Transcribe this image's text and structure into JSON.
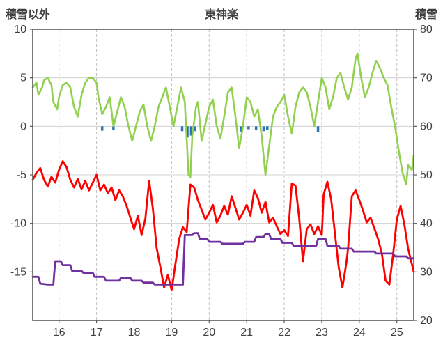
{
  "chart_data": {
    "type": "line",
    "title": "東神楽",
    "x_range": [
      15.3,
      25.45
    ],
    "x_ticks": [
      "16",
      "17",
      "18",
      "19",
      "20",
      "21",
      "22",
      "23",
      "24",
      "25"
    ],
    "x_tick_values": [
      16,
      17,
      18,
      19,
      20,
      21,
      22,
      23,
      24,
      25
    ],
    "left_axis": {
      "label": "積雪以外",
      "range": [
        -20,
        10
      ],
      "ticks": [
        10,
        5,
        0,
        -5,
        -10,
        -15
      ]
    },
    "right_axis": {
      "label": "積雪",
      "range": [
        20,
        80
      ],
      "ticks": [
        80,
        70,
        60,
        50,
        40,
        30,
        20
      ]
    },
    "grid": {
      "horizontal": "solid",
      "vertical": "dashed"
    },
    "legend": "none",
    "colors": {
      "green_line": "#92d050",
      "red_line": "#ff0000",
      "purple_line": "#7030a0",
      "blue_bars": "#2e75b6",
      "grid_h": "#d0d0d0",
      "grid_v": "#bfbfbf",
      "border": "#595959",
      "text": "#404040"
    },
    "series": [
      {
        "id": "green-line",
        "axis": "right",
        "color": "#92d050",
        "width": 2.6,
        "points": [
          [
            15.3,
            68
          ],
          [
            15.4,
            69
          ],
          [
            15.45,
            66.5
          ],
          [
            15.55,
            68
          ],
          [
            15.6,
            69.5
          ],
          [
            15.7,
            70
          ],
          [
            15.8,
            68.5
          ],
          [
            15.85,
            65
          ],
          [
            15.95,
            63.5
          ],
          [
            16.0,
            66
          ],
          [
            16.1,
            68.5
          ],
          [
            16.2,
            69
          ],
          [
            16.3,
            68
          ],
          [
            16.4,
            64
          ],
          [
            16.5,
            62
          ],
          [
            16.6,
            66.5
          ],
          [
            16.7,
            69
          ],
          [
            16.8,
            70
          ],
          [
            16.9,
            70
          ],
          [
            17.0,
            69
          ],
          [
            17.05,
            66
          ],
          [
            17.15,
            62.5
          ],
          [
            17.25,
            64
          ],
          [
            17.35,
            66
          ],
          [
            17.45,
            60
          ],
          [
            17.55,
            63
          ],
          [
            17.65,
            66
          ],
          [
            17.75,
            64
          ],
          [
            17.85,
            60
          ],
          [
            17.95,
            57
          ],
          [
            18.05,
            60
          ],
          [
            18.15,
            63
          ],
          [
            18.25,
            64.5
          ],
          [
            18.35,
            60
          ],
          [
            18.45,
            57
          ],
          [
            18.55,
            60
          ],
          [
            18.65,
            64
          ],
          [
            18.75,
            66
          ],
          [
            18.85,
            68
          ],
          [
            18.95,
            64
          ],
          [
            19.05,
            60
          ],
          [
            19.15,
            64
          ],
          [
            19.25,
            68
          ],
          [
            19.35,
            65
          ],
          [
            19.45,
            50
          ],
          [
            19.5,
            49.5
          ],
          [
            19.55,
            58
          ],
          [
            19.65,
            64
          ],
          [
            19.7,
            65
          ],
          [
            19.8,
            57
          ],
          [
            19.9,
            60.5
          ],
          [
            20.0,
            64
          ],
          [
            20.1,
            65.5
          ],
          [
            20.2,
            60
          ],
          [
            20.3,
            57.5
          ],
          [
            20.4,
            62
          ],
          [
            20.5,
            67
          ],
          [
            20.6,
            68
          ],
          [
            20.7,
            62
          ],
          [
            20.8,
            55.5
          ],
          [
            20.9,
            60
          ],
          [
            21.0,
            66
          ],
          [
            21.1,
            65
          ],
          [
            21.2,
            62
          ],
          [
            21.3,
            63.5
          ],
          [
            21.4,
            58
          ],
          [
            21.5,
            50
          ],
          [
            21.6,
            56
          ],
          [
            21.7,
            62
          ],
          [
            21.8,
            64
          ],
          [
            21.9,
            65
          ],
          [
            22.0,
            66.5
          ],
          [
            22.1,
            62
          ],
          [
            22.2,
            58.5
          ],
          [
            22.3,
            64
          ],
          [
            22.4,
            67
          ],
          [
            22.5,
            68
          ],
          [
            22.6,
            67
          ],
          [
            22.7,
            64
          ],
          [
            22.8,
            60
          ],
          [
            22.9,
            65
          ],
          [
            23.0,
            70
          ],
          [
            23.1,
            68
          ],
          [
            23.2,
            63.5
          ],
          [
            23.3,
            66
          ],
          [
            23.4,
            70
          ],
          [
            23.5,
            71
          ],
          [
            23.6,
            68
          ],
          [
            23.7,
            65.5
          ],
          [
            23.8,
            68
          ],
          [
            23.9,
            74
          ],
          [
            23.95,
            75
          ],
          [
            24.05,
            70
          ],
          [
            24.15,
            66
          ],
          [
            24.25,
            68
          ],
          [
            24.35,
            71
          ],
          [
            24.45,
            73.5
          ],
          [
            24.55,
            72
          ],
          [
            24.65,
            70
          ],
          [
            24.75,
            68.5
          ],
          [
            24.85,
            64
          ],
          [
            24.95,
            60
          ],
          [
            25.05,
            55
          ],
          [
            25.15,
            50.5
          ],
          [
            25.25,
            48
          ],
          [
            25.3,
            52
          ],
          [
            25.4,
            51
          ],
          [
            25.45,
            54
          ]
        ]
      },
      {
        "id": "red-line",
        "axis": "left",
        "color": "#ff0000",
        "width": 2.8,
        "points": [
          [
            15.3,
            -5.5
          ],
          [
            15.4,
            -4.8
          ],
          [
            15.5,
            -4.3
          ],
          [
            15.6,
            -5.5
          ],
          [
            15.7,
            -6.2
          ],
          [
            15.8,
            -5.2
          ],
          [
            15.9,
            -5.8
          ],
          [
            16.0,
            -4.5
          ],
          [
            16.1,
            -3.6
          ],
          [
            16.2,
            -4.2
          ],
          [
            16.3,
            -5.5
          ],
          [
            16.4,
            -6.3
          ],
          [
            16.5,
            -5.4
          ],
          [
            16.6,
            -6.5
          ],
          [
            16.7,
            -5.6
          ],
          [
            16.8,
            -6.6
          ],
          [
            16.9,
            -5.8
          ],
          [
            17.0,
            -5.0
          ],
          [
            17.1,
            -6.6
          ],
          [
            17.2,
            -6.0
          ],
          [
            17.3,
            -6.9
          ],
          [
            17.4,
            -6.3
          ],
          [
            17.5,
            -7.6
          ],
          [
            17.6,
            -6.6
          ],
          [
            17.7,
            -7.2
          ],
          [
            17.8,
            -8.2
          ],
          [
            17.9,
            -9.4
          ],
          [
            18.0,
            -10.6
          ],
          [
            18.1,
            -9.2
          ],
          [
            18.2,
            -11.2
          ],
          [
            18.3,
            -9.5
          ],
          [
            18.4,
            -5.6
          ],
          [
            18.5,
            -8.5
          ],
          [
            18.6,
            -12.5
          ],
          [
            18.7,
            -14.5
          ],
          [
            18.8,
            -16.6
          ],
          [
            18.9,
            -15.3
          ],
          [
            19.0,
            -16.9
          ],
          [
            19.1,
            -14.2
          ],
          [
            19.2,
            -11.6
          ],
          [
            19.3,
            -10.4
          ],
          [
            19.4,
            -10.9
          ],
          [
            19.5,
            -6.0
          ],
          [
            19.6,
            -6.3
          ],
          [
            19.7,
            -7.6
          ],
          [
            19.8,
            -8.6
          ],
          [
            19.9,
            -9.6
          ],
          [
            20.0,
            -8.9
          ],
          [
            20.1,
            -8.1
          ],
          [
            20.2,
            -9.9
          ],
          [
            20.3,
            -9.2
          ],
          [
            20.4,
            -8.2
          ],
          [
            20.5,
            -9.1
          ],
          [
            20.6,
            -7.2
          ],
          [
            20.7,
            -8.4
          ],
          [
            20.8,
            -9.6
          ],
          [
            20.9,
            -8.9
          ],
          [
            21.0,
            -8.1
          ],
          [
            21.1,
            -9.2
          ],
          [
            21.2,
            -6.6
          ],
          [
            21.3,
            -7.4
          ],
          [
            21.4,
            -8.9
          ],
          [
            21.5,
            -7.8
          ],
          [
            21.6,
            -9.9
          ],
          [
            21.7,
            -9.4
          ],
          [
            21.8,
            -10.3
          ],
          [
            21.9,
            -11.1
          ],
          [
            22.0,
            -10.7
          ],
          [
            22.1,
            -11.3
          ],
          [
            22.2,
            -5.9
          ],
          [
            22.3,
            -6.1
          ],
          [
            22.4,
            -9.5
          ],
          [
            22.5,
            -13.9
          ],
          [
            22.6,
            -10.6
          ],
          [
            22.7,
            -10.1
          ],
          [
            22.8,
            -11.1
          ],
          [
            22.9,
            -10.3
          ],
          [
            23.0,
            -11.2
          ],
          [
            23.05,
            -7.0
          ],
          [
            23.15,
            -5.7
          ],
          [
            23.25,
            -7.5
          ],
          [
            23.35,
            -11.0
          ],
          [
            23.45,
            -14.5
          ],
          [
            23.55,
            -16.6
          ],
          [
            23.65,
            -14.2
          ],
          [
            23.7,
            -12.6
          ],
          [
            23.8,
            -7.2
          ],
          [
            23.9,
            -6.6
          ],
          [
            24.0,
            -7.6
          ],
          [
            24.1,
            -8.7
          ],
          [
            24.2,
            -9.9
          ],
          [
            24.3,
            -9.4
          ],
          [
            24.4,
            -10.5
          ],
          [
            24.5,
            -11.6
          ],
          [
            24.6,
            -13.1
          ],
          [
            24.7,
            -15.9
          ],
          [
            24.8,
            -16.3
          ],
          [
            24.9,
            -13.2
          ],
          [
            25.0,
            -9.6
          ],
          [
            25.1,
            -8.2
          ],
          [
            25.2,
            -10.1
          ],
          [
            25.3,
            -12.6
          ],
          [
            25.4,
            -14.2
          ],
          [
            25.45,
            -15.0
          ]
        ]
      },
      {
        "id": "purple-line",
        "axis": "left",
        "color": "#7030a0",
        "width": 2.8,
        "points": [
          [
            15.3,
            -15.5
          ],
          [
            15.45,
            -15.5
          ],
          [
            15.5,
            -16.2
          ],
          [
            15.7,
            -16.3
          ],
          [
            15.85,
            -16.3
          ],
          [
            15.9,
            -13.9
          ],
          [
            16.05,
            -13.9
          ],
          [
            16.1,
            -14.3
          ],
          [
            16.3,
            -14.3
          ],
          [
            16.35,
            -14.9
          ],
          [
            16.6,
            -14.9
          ],
          [
            16.65,
            -15.1
          ],
          [
            16.9,
            -15.1
          ],
          [
            16.95,
            -15.5
          ],
          [
            17.2,
            -15.5
          ],
          [
            17.25,
            -15.9
          ],
          [
            17.6,
            -15.9
          ],
          [
            17.65,
            -15.6
          ],
          [
            17.9,
            -15.6
          ],
          [
            17.95,
            -15.9
          ],
          [
            18.2,
            -15.9
          ],
          [
            18.25,
            -16.1
          ],
          [
            18.5,
            -16.1
          ],
          [
            18.55,
            -16.3
          ],
          [
            19.3,
            -16.3
          ],
          [
            19.35,
            -11.2
          ],
          [
            19.55,
            -11.2
          ],
          [
            19.6,
            -11.0
          ],
          [
            19.7,
            -11.0
          ],
          [
            19.75,
            -11.6
          ],
          [
            19.95,
            -11.6
          ],
          [
            20.0,
            -11.9
          ],
          [
            20.3,
            -11.9
          ],
          [
            20.35,
            -12.1
          ],
          [
            20.9,
            -12.1
          ],
          [
            20.95,
            -11.9
          ],
          [
            21.2,
            -11.9
          ],
          [
            21.25,
            -11.4
          ],
          [
            21.45,
            -11.4
          ],
          [
            21.5,
            -11.1
          ],
          [
            21.6,
            -11.1
          ],
          [
            21.65,
            -11.6
          ],
          [
            21.9,
            -11.6
          ],
          [
            21.95,
            -12.0
          ],
          [
            22.2,
            -12.0
          ],
          [
            22.25,
            -12.3
          ],
          [
            22.85,
            -12.3
          ],
          [
            22.9,
            -11.6
          ],
          [
            23.1,
            -11.6
          ],
          [
            23.15,
            -12.3
          ],
          [
            23.45,
            -12.3
          ],
          [
            23.5,
            -12.6
          ],
          [
            23.8,
            -12.6
          ],
          [
            23.85,
            -12.9
          ],
          [
            24.4,
            -12.9
          ],
          [
            24.45,
            -13.1
          ],
          [
            24.9,
            -13.1
          ],
          [
            24.95,
            -13.4
          ],
          [
            25.25,
            -13.4
          ],
          [
            25.3,
            -13.6
          ],
          [
            25.45,
            -13.6
          ]
        ]
      }
    ],
    "bars": {
      "id": "blue-bars",
      "axis": "left",
      "color": "#2e75b6",
      "base": 0,
      "bar_width": 3.5,
      "points": [
        [
          17.15,
          -0.45
        ],
        [
          17.45,
          -0.35
        ],
        [
          19.28,
          -0.5
        ],
        [
          19.42,
          -1.15
        ],
        [
          19.52,
          -0.95
        ],
        [
          19.62,
          -0.5
        ],
        [
          20.85,
          -0.6
        ],
        [
          21.05,
          -0.3
        ],
        [
          21.25,
          -0.35
        ],
        [
          21.45,
          -0.5
        ],
        [
          21.55,
          -0.35
        ],
        [
          22.9,
          -0.55
        ]
      ]
    }
  }
}
